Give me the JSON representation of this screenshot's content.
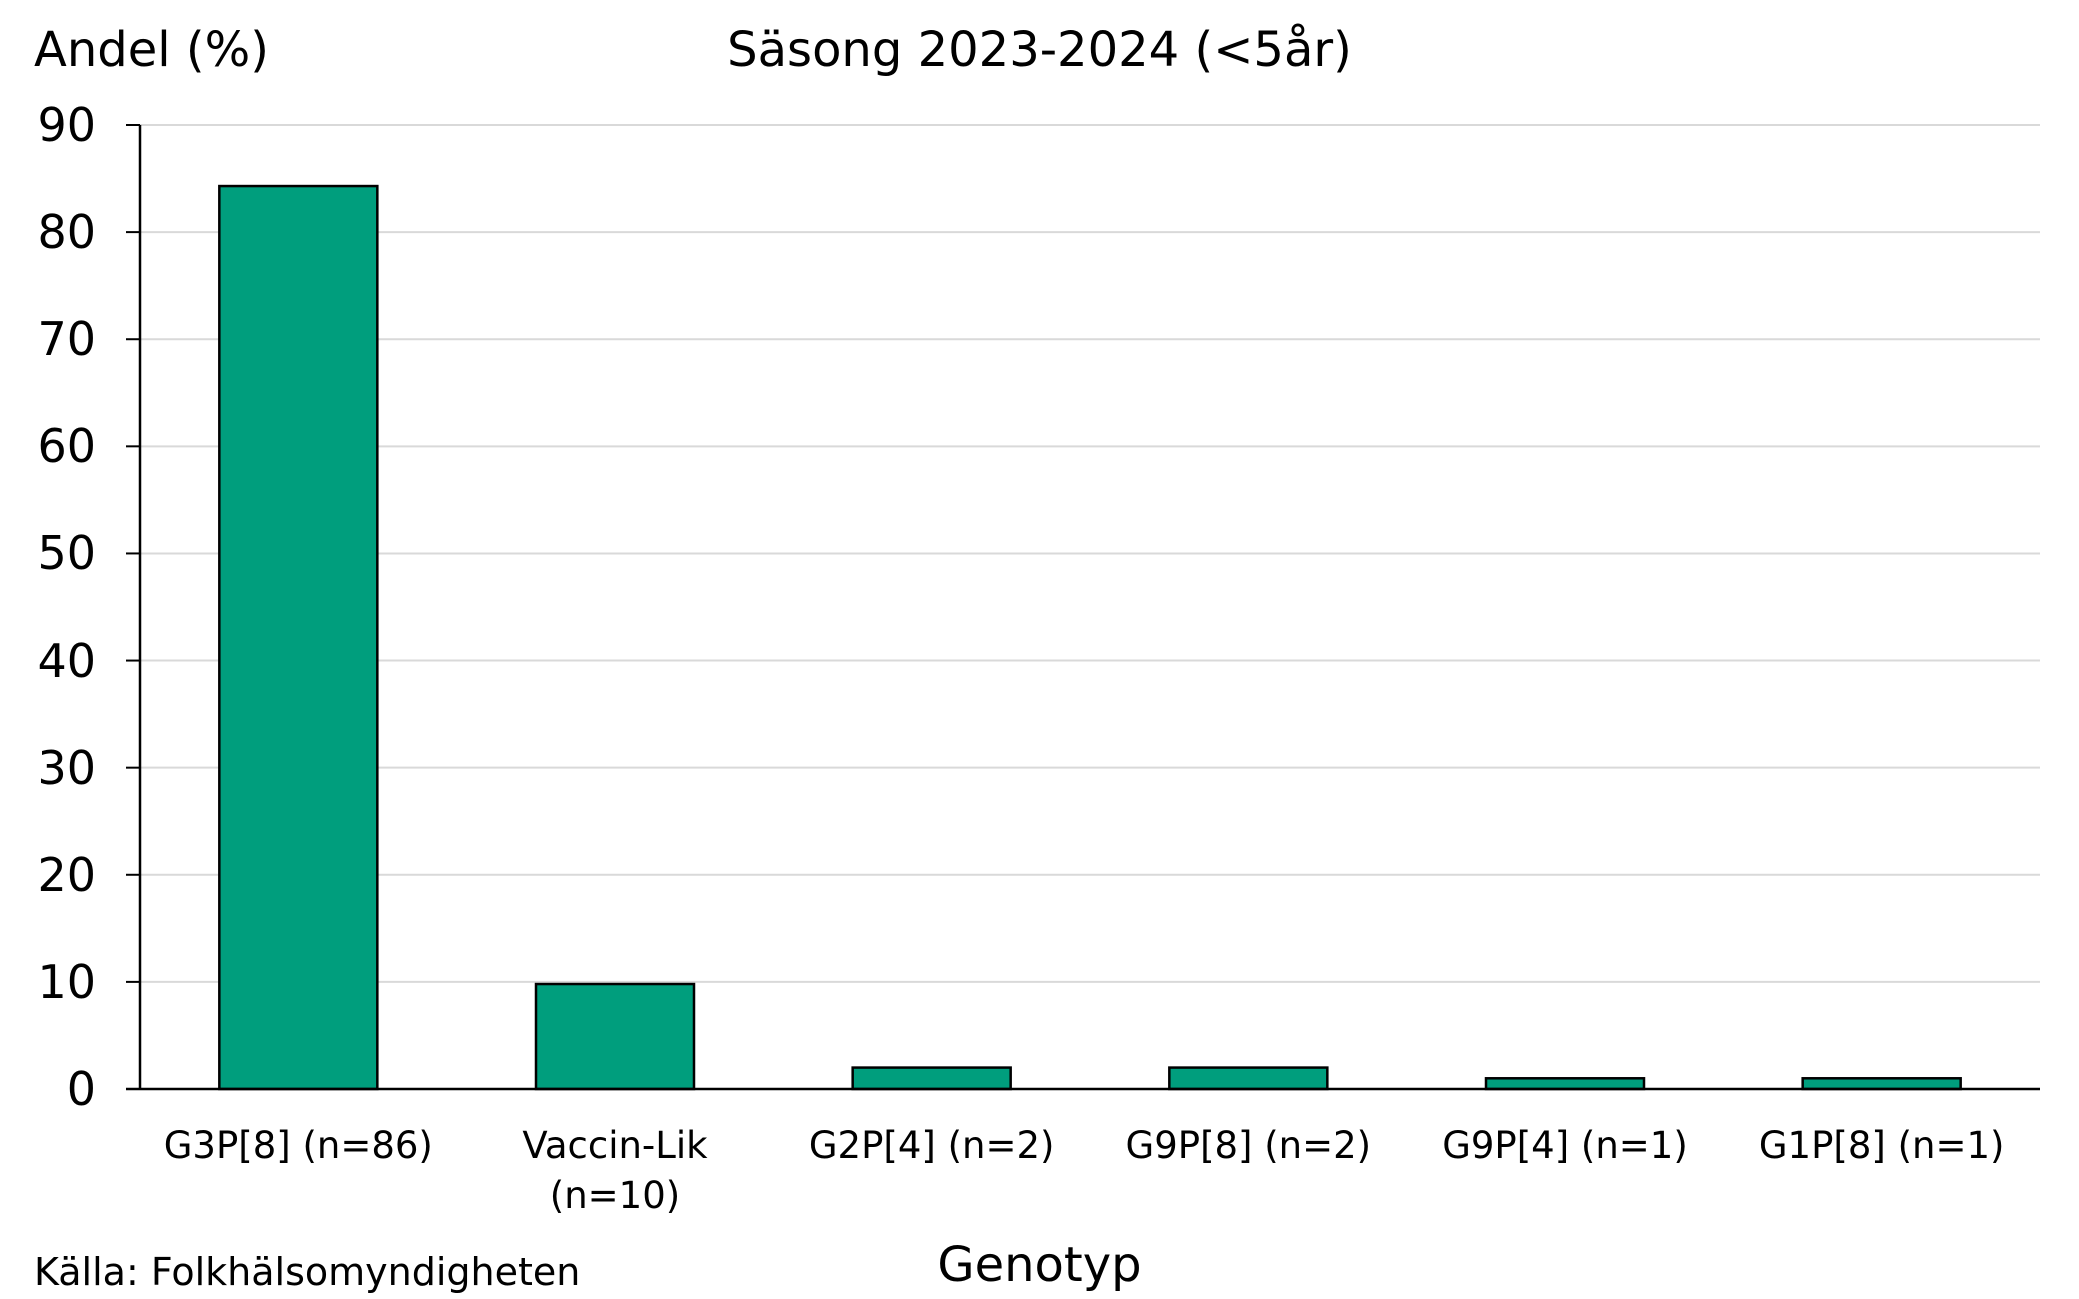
{
  "chart_data": {
    "type": "bar",
    "title": "Säsong 2023-2024 (<5år)",
    "ylabel": "Andel (%)",
    "xlabel": "Genotyp",
    "categories": [
      "G3P[8] (n=86)",
      "Vaccin-Lik\n(n=10)",
      "G2P[4] (n=2)",
      "G9P[8] (n=2)",
      "G9P[4] (n=1)",
      "G1P[8] (n=1)"
    ],
    "values": [
      84.3,
      9.8,
      2.0,
      2.0,
      1.0,
      1.0
    ],
    "ylim": [
      0,
      90
    ],
    "yticks": [
      "0",
      "10",
      "20",
      "30",
      "40",
      "50",
      "60",
      "70",
      "80",
      "90"
    ],
    "grid": true,
    "legend": "none",
    "bar_color": "#009E7D",
    "source": "Källa: Folkhälsomyndigheten"
  }
}
